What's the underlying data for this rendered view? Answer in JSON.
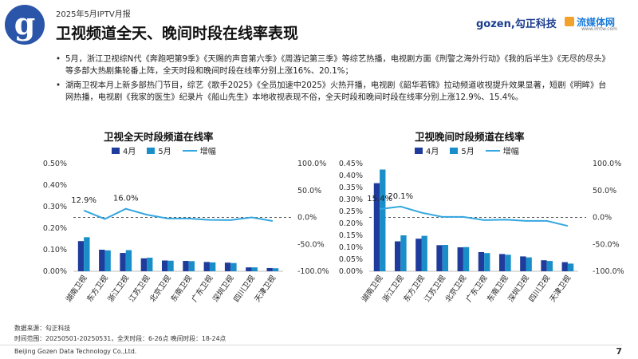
{
  "header": {
    "report_label": "2025年5月IPTV月报",
    "title": "卫视频道全天、晚间时段在线率表现",
    "brand_gozen": "gozen,勾正科技",
    "brand_media": "流媒体网",
    "brand_media_url": "www.lmtw.com",
    "logo_letter": "g"
  },
  "bullets": [
    "5月，浙江卫视综N代《奔跑吧第9季》《天赐的声音第六季》《周游记第三季》等综艺热播，电视剧方面《刑警之海外行动》《我的后半生》《无尽的尽头》等多部大热剧集轮番上阵，全天时段和晚间时段在线率分别上涨16%、20.1%；",
    "湖南卫视本月上新多部热门节目，综艺《歌手2025》《全员加速中2025》火热开播，电视剧《韶华若锦》拉动频道收视提升效果显著，短剧《明眸》台网热播，电视剧《我家的医生》纪录片《船山先生》本地收视表现不俗，全天时段和晚间时段在线率分别上涨12.9%、15.4%。"
  ],
  "colors": {
    "april": "#1f3c9c",
    "may": "#1a8ec9",
    "growth": "#35a7e0",
    "title_blue": "#2a55a8"
  },
  "chart_data": [
    {
      "type": "bar",
      "title": "卫视全天时段频道在线率",
      "categories": [
        "湖南卫视",
        "东方卫视",
        "浙江卫视",
        "江苏卫视",
        "北京卫视",
        "东南卫视",
        "广东卫视",
        "深圳卫视",
        "四川卫视",
        "天津卫视"
      ],
      "series": [
        {
          "name": "4月",
          "values": [
            0.14,
            0.1,
            0.085,
            0.06,
            0.05,
            0.048,
            0.043,
            0.04,
            0.018,
            0.015
          ]
        },
        {
          "name": "5月",
          "values": [
            0.158,
            0.097,
            0.098,
            0.063,
            0.049,
            0.047,
            0.041,
            0.038,
            0.018,
            0.014
          ]
        },
        {
          "name": "增幅",
          "values": [
            12.9,
            -3.0,
            16.0,
            5.0,
            -2.0,
            -2.1,
            -4.7,
            -5.0,
            0.0,
            -6.7
          ],
          "axis": "right",
          "line": true
        }
      ],
      "y_ticks": [
        "0.00%",
        "0.10%",
        "0.20%",
        "0.30%",
        "0.40%",
        "0.50%"
      ],
      "y2_ticks": [
        "-100.0%",
        "-50.0%",
        "0.0%",
        "50.0%",
        "100.0%"
      ],
      "ylim": [
        0,
        0.5
      ],
      "y2lim": [
        -100,
        100
      ],
      "annotations": [
        {
          "label": "12.9%",
          "index": 0
        },
        {
          "label": "16.0%",
          "index": 2
        }
      ],
      "legend": "top-left"
    },
    {
      "type": "bar",
      "title": "卫视晚间时段频道在线率",
      "categories": [
        "湖南卫视",
        "浙江卫视",
        "东方卫视",
        "江苏卫视",
        "北京卫视",
        "广东卫视",
        "东南卫视",
        "深圳卫视",
        "四川卫视",
        "天津卫视"
      ],
      "series": [
        {
          "name": "4月",
          "values": [
            0.368,
            0.125,
            0.136,
            0.109,
            0.1,
            0.08,
            0.072,
            0.062,
            0.046,
            0.038
          ]
        },
        {
          "name": "5月",
          "values": [
            0.425,
            0.15,
            0.148,
            0.11,
            0.101,
            0.076,
            0.069,
            0.058,
            0.043,
            0.032
          ]
        },
        {
          "name": "增幅",
          "values": [
            15.4,
            20.1,
            8.8,
            0.9,
            1.0,
            -5.0,
            -4.2,
            -6.5,
            -6.5,
            -15.8
          ],
          "axis": "right",
          "line": true
        }
      ],
      "y_ticks": [
        "0.00%",
        "0.05%",
        "0.10%",
        "0.15%",
        "0.20%",
        "0.25%",
        "0.30%",
        "0.35%",
        "0.40%",
        "0.45%"
      ],
      "y2_ticks": [
        "-100.0%",
        "-50.0%",
        "0.0%",
        "50.0%",
        "100.0%"
      ],
      "ylim": [
        0,
        0.45
      ],
      "y2lim": [
        -100,
        100
      ],
      "annotations": [
        {
          "label": "15.4%",
          "index": 0
        },
        {
          "label": "20.1%",
          "index": 1
        }
      ],
      "legend": "top-left"
    }
  ],
  "footer": {
    "source": "数据来源：勾正科技",
    "range": "时间范围：20250501-20250531，全天时段：6-26点 晚间时段：18-24点",
    "company": "Beijing Gozen Data Technology Co.,Ltd.",
    "page_number": "7"
  }
}
